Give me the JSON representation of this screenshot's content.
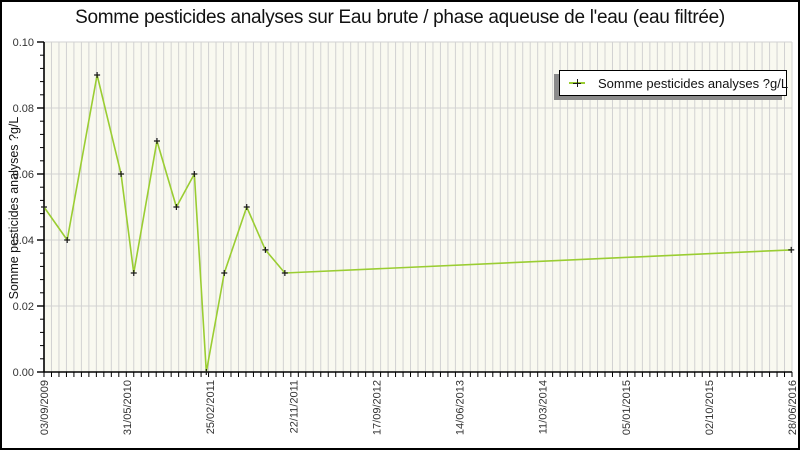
{
  "title": "Somme pesticides analyses sur Eau brute / phase aqueuse de l'eau (eau filtrée)",
  "y_axis": {
    "label": "Somme pesticides analyses ?g/L",
    "tick_labels": [
      "0.00",
      "0.02",
      "0.04",
      "0.06",
      "0.08",
      "0.10"
    ],
    "min": 0.0,
    "max": 0.1,
    "major_step": 0.02,
    "minor_step": 0.004
  },
  "x_axis": {
    "tick_labels": [
      "03/09/2009",
      "31/05/2010",
      "25/02/2011",
      "22/11/2011",
      "17/09/2012",
      "14/06/2013",
      "11/03/2014",
      "05/01/2015",
      "02/10/2015",
      "28/06/2016"
    ]
  },
  "legend": {
    "label": "Somme pesticides analyses ?g/L"
  },
  "colors": {
    "line": "#9ACD32",
    "marker": "#1a1a1a",
    "grid": "#d2d2d2",
    "plot_background": "#f9f9f0",
    "axis": "#000000",
    "tick_label": "#333333",
    "legend_shadow": "#8b8b8b"
  },
  "chart_data": {
    "type": "line",
    "title": "Somme pesticides analyses sur Eau brute / phase aqueuse de l'eau (eau filtrée)",
    "xlabel": "",
    "ylabel": "Somme pesticides analyses ?g/L",
    "ylim": [
      0.0,
      0.1
    ],
    "x_range": [
      "03/09/2009",
      "28/06/2016"
    ],
    "grid": true,
    "legend_position": "top-right",
    "series": [
      {
        "name": "Somme pesticides analyses ?g/L",
        "marker": "plus",
        "points": [
          {
            "date_est": "03/09/2009",
            "x_frac": 0.0,
            "value": 0.05
          },
          {
            "date_est": "19/11/2009",
            "x_frac": 0.031,
            "value": 0.04
          },
          {
            "date_est": "26/02/2010",
            "x_frac": 0.071,
            "value": 0.09
          },
          {
            "date_est": "17/05/2010",
            "x_frac": 0.103,
            "value": 0.06
          },
          {
            "date_est": "30/06/2010",
            "x_frac": 0.12,
            "value": 0.03
          },
          {
            "date_est": "14/09/2010",
            "x_frac": 0.151,
            "value": 0.07
          },
          {
            "date_est": "16/11/2010",
            "x_frac": 0.177,
            "value": 0.05
          },
          {
            "date_est": "15/01/2011",
            "x_frac": 0.201,
            "value": 0.06
          },
          {
            "date_est": "24/02/2011",
            "x_frac": 0.217,
            "value": 0.0
          },
          {
            "date_est": "25/04/2011",
            "x_frac": 0.241,
            "value": 0.03
          },
          {
            "date_est": "11/07/2011",
            "x_frac": 0.271,
            "value": 0.05
          },
          {
            "date_est": "09/09/2011",
            "x_frac": 0.296,
            "value": 0.037
          },
          {
            "date_est": "14/11/2011",
            "x_frac": 0.322,
            "value": 0.03
          },
          {
            "date_est": "28/06/2016",
            "x_frac": 0.999,
            "value": 0.037
          }
        ]
      }
    ]
  }
}
